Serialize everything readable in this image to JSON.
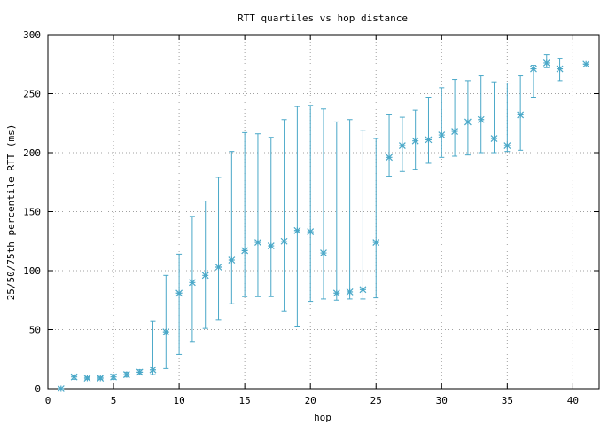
{
  "chart_data": {
    "type": "scatter",
    "title": "RTT quartiles vs hop distance",
    "xlabel": "hop",
    "ylabel": "25/50/75th percentile RTT (ms)",
    "xlim": [
      0,
      42
    ],
    "ylim": [
      0,
      300
    ],
    "xticks": [
      0,
      5,
      10,
      15,
      20,
      25,
      30,
      35,
      40
    ],
    "yticks": [
      0,
      50,
      100,
      150,
      200,
      250,
      300
    ],
    "grid": true,
    "color": "#4aa8c8",
    "series": [
      {
        "points": [
          {
            "x": 1,
            "median": 0,
            "q25": 0,
            "q75": 0
          },
          {
            "x": 2,
            "median": 10,
            "q25": 8,
            "q75": 11
          },
          {
            "x": 3,
            "median": 9,
            "q25": 8,
            "q75": 10
          },
          {
            "x": 4,
            "median": 9,
            "q25": 8,
            "q75": 10
          },
          {
            "x": 5,
            "median": 10,
            "q25": 8,
            "q75": 12
          },
          {
            "x": 6,
            "median": 12,
            "q25": 10,
            "q75": 14
          },
          {
            "x": 7,
            "median": 14,
            "q25": 12,
            "q75": 16
          },
          {
            "x": 8,
            "median": 16,
            "q25": 12,
            "q75": 57
          },
          {
            "x": 9,
            "median": 48,
            "q25": 17,
            "q75": 96
          },
          {
            "x": 10,
            "median": 81,
            "q25": 29,
            "q75": 114
          },
          {
            "x": 11,
            "median": 90,
            "q25": 40,
            "q75": 146
          },
          {
            "x": 12,
            "median": 96,
            "q25": 51,
            "q75": 159
          },
          {
            "x": 13,
            "median": 103,
            "q25": 58,
            "q75": 179
          },
          {
            "x": 14,
            "median": 109,
            "q25": 72,
            "q75": 201
          },
          {
            "x": 15,
            "median": 117,
            "q25": 78,
            "q75": 217
          },
          {
            "x": 16,
            "median": 124,
            "q25": 78,
            "q75": 216
          },
          {
            "x": 17,
            "median": 121,
            "q25": 78,
            "q75": 213
          },
          {
            "x": 18,
            "median": 125,
            "q25": 66,
            "q75": 228
          },
          {
            "x": 19,
            "median": 134,
            "q25": 53,
            "q75": 239
          },
          {
            "x": 20,
            "median": 133,
            "q25": 74,
            "q75": 240
          },
          {
            "x": 21,
            "median": 115,
            "q25": 76,
            "q75": 237
          },
          {
            "x": 22,
            "median": 81,
            "q25": 75,
            "q75": 226
          },
          {
            "x": 23,
            "median": 82,
            "q25": 76,
            "q75": 228
          },
          {
            "x": 24,
            "median": 84,
            "q25": 76,
            "q75": 219
          },
          {
            "x": 25,
            "median": 124,
            "q25": 77,
            "q75": 212
          },
          {
            "x": 26,
            "median": 196,
            "q25": 180,
            "q75": 232
          },
          {
            "x": 27,
            "median": 206,
            "q25": 184,
            "q75": 230
          },
          {
            "x": 28,
            "median": 210,
            "q25": 186,
            "q75": 236
          },
          {
            "x": 29,
            "median": 211,
            "q25": 191,
            "q75": 247
          },
          {
            "x": 30,
            "median": 215,
            "q25": 196,
            "q75": 255
          },
          {
            "x": 31,
            "median": 218,
            "q25": 197,
            "q75": 262
          },
          {
            "x": 32,
            "median": 226,
            "q25": 198,
            "q75": 261
          },
          {
            "x": 33,
            "median": 228,
            "q25": 200,
            "q75": 265
          },
          {
            "x": 34,
            "median": 212,
            "q25": 200,
            "q75": 260
          },
          {
            "x": 35,
            "median": 206,
            "q25": 201,
            "q75": 259
          },
          {
            "x": 36,
            "median": 232,
            "q25": 202,
            "q75": 265
          },
          {
            "x": 37,
            "median": 271,
            "q25": 247,
            "q75": 274
          },
          {
            "x": 38,
            "median": 276,
            "q25": 272,
            "q75": 283
          },
          {
            "x": 39,
            "median": 271,
            "q25": 261,
            "q75": 280
          },
          {
            "x": 41,
            "median": 275,
            "q25": 275,
            "q75": 275
          }
        ]
      }
    ]
  }
}
